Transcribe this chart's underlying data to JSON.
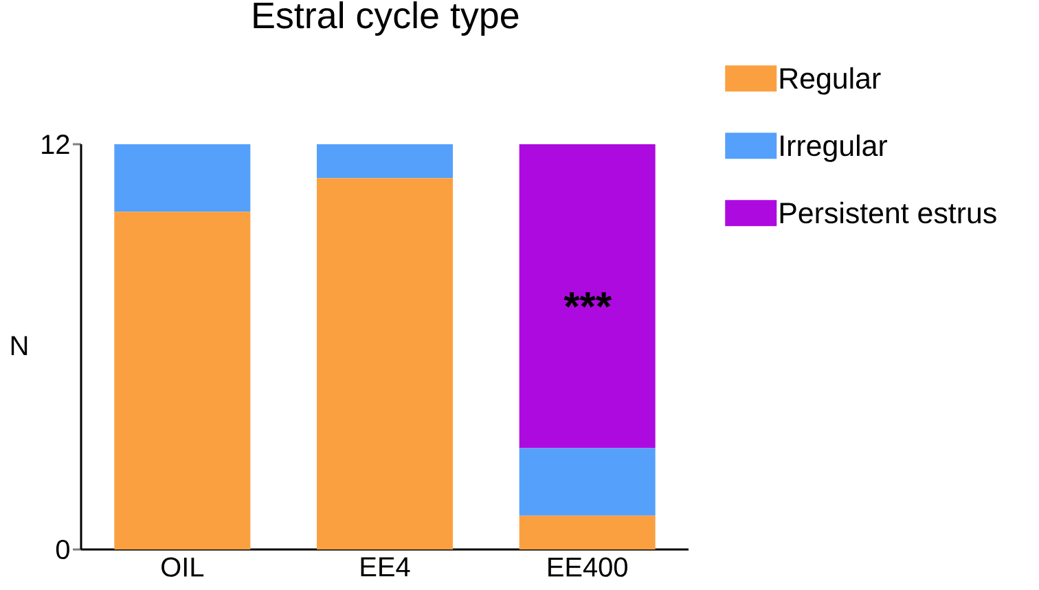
{
  "chart_data": {
    "type": "bar",
    "stacked": true,
    "title": "Estral cycle type",
    "ylabel": "N",
    "categories": [
      "OIL",
      "EE4",
      "EE400"
    ],
    "series": [
      {
        "name": "Regular",
        "color": "#fba040",
        "values": [
          10,
          11,
          1
        ]
      },
      {
        "name": "Irregular",
        "color": "#55a0fb",
        "values": [
          2,
          1,
          2
        ]
      },
      {
        "name": "Persistent estrus",
        "color": "#ad0ae0",
        "values": [
          0,
          0,
          9
        ]
      }
    ],
    "ylim": [
      0,
      12
    ],
    "yticks": [
      0,
      12
    ],
    "legend": "right",
    "annotations": [
      "***"
    ]
  }
}
